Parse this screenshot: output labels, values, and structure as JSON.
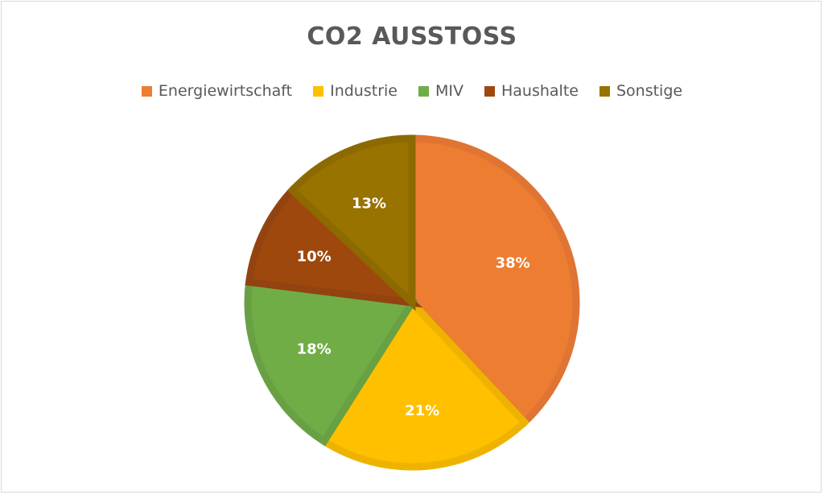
{
  "chart_data": {
    "type": "pie",
    "title": "CO2 AUSSTOSS",
    "legend_position": "top",
    "categories": [
      "Energiewirtschaft",
      "Industrie",
      "MIV",
      "Haushalte",
      "Sonstige"
    ],
    "values": [
      38,
      21,
      18,
      10,
      13
    ],
    "labels": [
      "38%",
      "21%",
      "18%",
      "10%",
      "13%"
    ],
    "colors": [
      "#ED7D31",
      "#FFC000",
      "#70AD47",
      "#9E480E",
      "#997300"
    ],
    "border_colors": [
      "#DF7433",
      "#EDB300",
      "#68A043",
      "#93430F",
      "#8C6A00"
    ]
  }
}
